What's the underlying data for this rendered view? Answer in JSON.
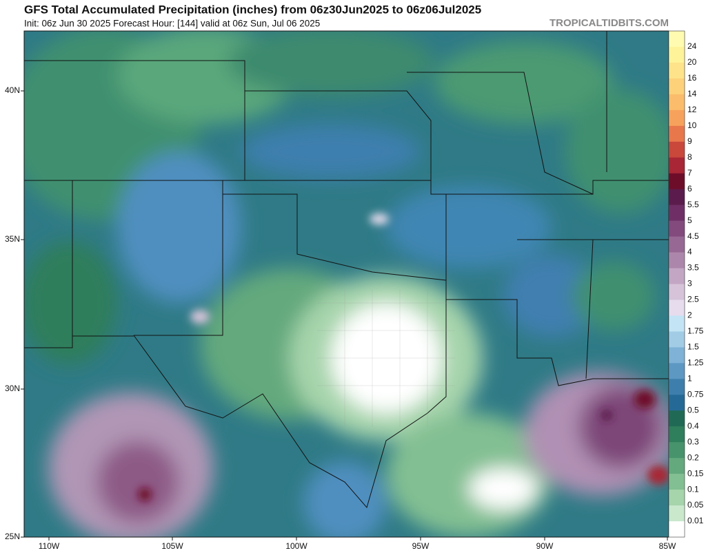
{
  "header": {
    "title": "GFS Total Accumulated Precipitation (inches) from 06z30Jun2025 to 06z06Jul2025",
    "subtitle": "Init: 06z Jun 30 2025   Forecast Hour: [144]   valid at 06z Sun, Jul 06 2025",
    "site": "TROPICALTIDBITS.COM"
  },
  "map": {
    "lat_labels": [
      "40N",
      "35N",
      "30N",
      "25N"
    ],
    "lon_labels": [
      "110W",
      "105W",
      "100W",
      "95W",
      "90W",
      "85W"
    ]
  },
  "colorbar": {
    "labels": [
      "24",
      "20",
      "16",
      "14",
      "12",
      "10",
      "9",
      "8",
      "7",
      "6",
      "5.5",
      "5",
      "4.5",
      "4",
      "3.5",
      "3",
      "2.5",
      "2",
      "1.75",
      "1.5",
      "1.25",
      "1",
      "0.75",
      "0.5",
      "0.4",
      "0.3",
      "0.2",
      "0.15",
      "0.1",
      "0.05",
      "0.01"
    ],
    "colors": [
      "#fffbb0",
      "#fff39a",
      "#fee38a",
      "#fdd17a",
      "#fbbd6b",
      "#f7a25c",
      "#e8774c",
      "#c9473b",
      "#a82635",
      "#6e0d2a",
      "#5b1b4c",
      "#6f2f66",
      "#834a7e",
      "#986894",
      "#ad87ab",
      "#c3a6c4",
      "#d6c3d9",
      "#e6dced",
      "#c3e4f4",
      "#a2cce6",
      "#7fb2d6",
      "#5d98c3",
      "#3d7ead",
      "#256a96",
      "#206a55",
      "#2f7e5c",
      "#47946c",
      "#63a97d",
      "#82bf92",
      "#a6d4ab",
      "#c9e8cc",
      "#ffffff"
    ]
  }
}
